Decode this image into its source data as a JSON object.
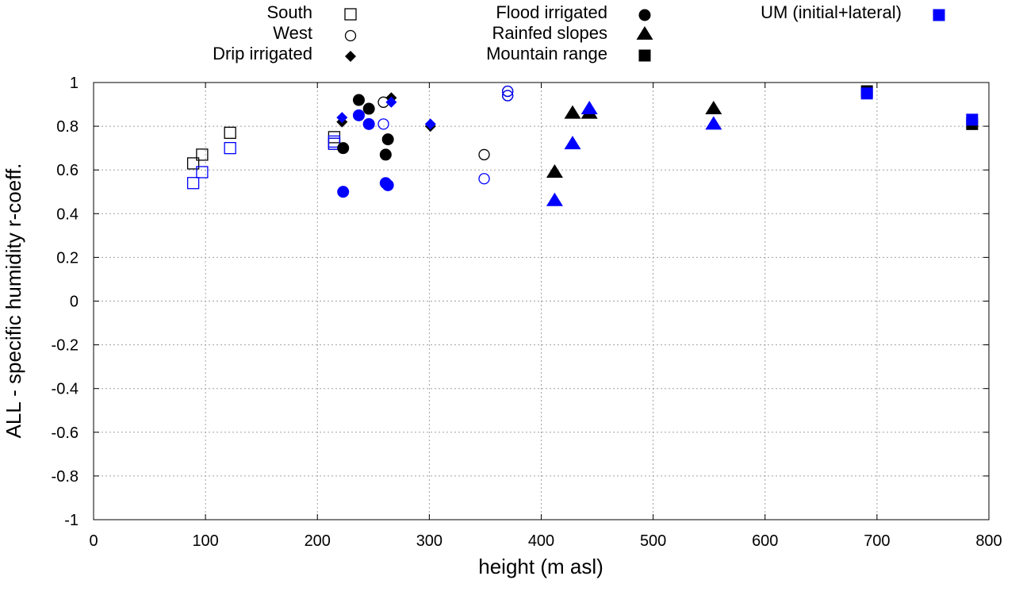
{
  "chart_data": {
    "type": "scatter",
    "xlabel": "height (m asl)",
    "ylabel": "ALL - specific humidity r-coeff.",
    "xlim": [
      0,
      800
    ],
    "ylim": [
      -1,
      1
    ],
    "grid": true,
    "legend_position": "top",
    "x_ticks": [
      0,
      100,
      200,
      300,
      400,
      500,
      600,
      700,
      800
    ],
    "y_ticks": [
      1,
      0.8,
      0.6,
      0.4,
      0.2,
      0,
      -0.2,
      -0.4,
      -0.6,
      -0.8,
      -1
    ],
    "x_tick_labels": [
      "0",
      "100",
      "200",
      "300",
      "400",
      "500",
      "600",
      "700",
      "800"
    ],
    "y_tick_labels": [
      "1",
      "0.8",
      "0.6",
      "0.4",
      "0.2",
      "0",
      "-0.2",
      "-0.4",
      "-0.6",
      "-0.8",
      "-1"
    ],
    "colors": {
      "observed": "#000000",
      "model": "#0000ff"
    },
    "legend": [
      {
        "label": "South",
        "marker": "square-open",
        "color": "#000000"
      },
      {
        "label": "West",
        "marker": "circle-open",
        "color": "#000000"
      },
      {
        "label": "Drip irrigated",
        "marker": "diamond-filled",
        "color": "#000000"
      },
      {
        "label": "Flood irrigated",
        "marker": "circle-filled",
        "color": "#000000"
      },
      {
        "label": "Rainfed slopes",
        "marker": "triangle-filled",
        "color": "#000000"
      },
      {
        "label": "Mountain range",
        "marker": "square-filled",
        "color": "#000000"
      },
      {
        "label": "UM (initial+lateral)",
        "marker": "square-filled",
        "color": "#0000ff"
      }
    ],
    "series": [
      {
        "name": "South",
        "marker": "square-open",
        "color": "#000000",
        "points": [
          [
            89,
            0.63
          ],
          [
            97,
            0.67
          ],
          [
            122,
            0.77
          ],
          [
            215,
            0.75
          ],
          [
            215,
            0.72
          ]
        ]
      },
      {
        "name": "South (UM)",
        "marker": "square-open",
        "color": "#0000ff",
        "points": [
          [
            89,
            0.54
          ],
          [
            97,
            0.59
          ],
          [
            122,
            0.7
          ],
          [
            215,
            0.72
          ],
          [
            215,
            0.73
          ]
        ]
      },
      {
        "name": "West",
        "marker": "circle-open",
        "color": "#000000",
        "points": [
          [
            259,
            0.91
          ],
          [
            349,
            0.67
          ],
          [
            370,
            0.94
          ],
          [
            370,
            0.96
          ]
        ]
      },
      {
        "name": "West (UM)",
        "marker": "circle-open",
        "color": "#0000ff",
        "points": [
          [
            259,
            0.81
          ],
          [
            349,
            0.56
          ],
          [
            370,
            0.96
          ],
          [
            370,
            0.94
          ]
        ]
      },
      {
        "name": "Drip irrigated",
        "marker": "diamond-filled",
        "color": "#000000",
        "points": [
          [
            222,
            0.82
          ],
          [
            266,
            0.93
          ],
          [
            301,
            0.8
          ]
        ]
      },
      {
        "name": "Drip irrigated (UM)",
        "marker": "diamond-filled",
        "color": "#0000ff",
        "points": [
          [
            222,
            0.84
          ],
          [
            266,
            0.91
          ],
          [
            301,
            0.81
          ]
        ]
      },
      {
        "name": "Flood irrigated",
        "marker": "circle-filled",
        "color": "#000000",
        "points": [
          [
            237,
            0.92
          ],
          [
            246,
            0.88
          ],
          [
            223,
            0.7
          ],
          [
            261,
            0.67
          ],
          [
            263,
            0.74
          ]
        ]
      },
      {
        "name": "Flood irrigated (UM)",
        "marker": "circle-filled",
        "color": "#0000ff",
        "points": [
          [
            237,
            0.85
          ],
          [
            246,
            0.81
          ],
          [
            223,
            0.5
          ],
          [
            261,
            0.54
          ],
          [
            263,
            0.53
          ]
        ]
      },
      {
        "name": "Rainfed slopes",
        "marker": "triangle-filled",
        "color": "#000000",
        "points": [
          [
            412,
            0.59
          ],
          [
            428,
            0.86
          ],
          [
            443,
            0.86
          ],
          [
            554,
            0.88
          ]
        ]
      },
      {
        "name": "Rainfed slopes (UM)",
        "marker": "triangle-filled",
        "color": "#0000ff",
        "points": [
          [
            412,
            0.46
          ],
          [
            428,
            0.72
          ],
          [
            443,
            0.88
          ],
          [
            554,
            0.81
          ]
        ]
      },
      {
        "name": "Mountain range",
        "marker": "square-filled",
        "color": "#000000",
        "points": [
          [
            691,
            0.96
          ],
          [
            785,
            0.81
          ]
        ]
      },
      {
        "name": "Mountain range (UM)",
        "marker": "square-filled",
        "color": "#0000ff",
        "points": [
          [
            691,
            0.95
          ],
          [
            785,
            0.83
          ]
        ]
      }
    ]
  }
}
